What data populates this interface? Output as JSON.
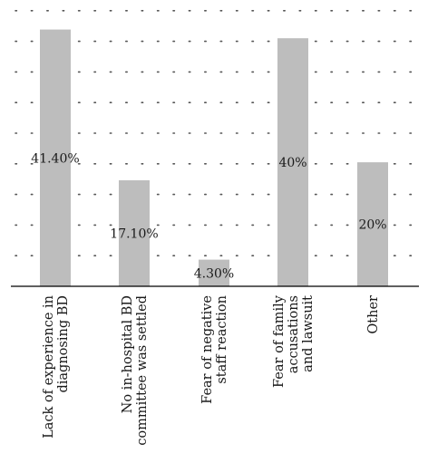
{
  "chart_data": {
    "type": "bar",
    "categories": [
      [
        "Lack of experience in",
        "diagnosing BD"
      ],
      [
        "No in-hospital BD",
        "committee was settled"
      ],
      [
        "Fear of negative",
        "staff reaction"
      ],
      [
        "Fear of family",
        "accusations",
        "and lawsuit"
      ],
      [
        "Other"
      ]
    ],
    "values": [
      41.4,
      17.1,
      4.3,
      40,
      20
    ],
    "data_labels": [
      "41.40%",
      "17.10%",
      "4.30%",
      "40%",
      "20%"
    ],
    "title": "",
    "xlabel": "",
    "ylabel": "",
    "ylim": [
      0,
      45
    ],
    "grid": true,
    "bar_color": "#bdbdbd",
    "grid_color": "#555555"
  }
}
